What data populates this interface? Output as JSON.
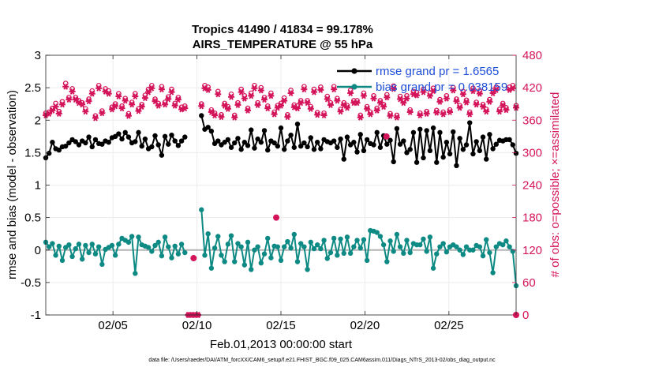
{
  "chart_data": {
    "type": "line",
    "title": "Tropics 41490 / 41834 = 99.178%",
    "subtitle": "AIRS_TEMPERATURE @ 55 hPa",
    "xlabel": "Feb.01,2013 00:00:00 start",
    "ylabel_left": "rmse and bias (model - observation)",
    "ylabel_right": "# of obs: o=possible; ×=assimilated",
    "footnote": "data file: /Users/raeder/DAI/ATM_forcXX/CAM6_setup/f.e21.FHIST_BGC.f09_025.CAM6assim.011/Diags_NTrS_2013-02/obs_diag_output.nc",
    "xlim": [
      1.0,
      29.0
    ],
    "ylim_left": [
      -1,
      3
    ],
    "ylim_right": [
      0,
      480
    ],
    "x_ticks": [
      5,
      10,
      15,
      20,
      25
    ],
    "x_tick_labels": [
      "02/05",
      "02/10",
      "02/15",
      "02/20",
      "02/25"
    ],
    "y_left_ticks": [
      -1,
      -0.5,
      0,
      0.5,
      1,
      1.5,
      2,
      2.5,
      3
    ],
    "y_left_tick_labels": [
      "-1",
      "-0.5",
      "0",
      "0.5",
      "1",
      "1.5",
      "2",
      "2.5",
      "3"
    ],
    "y_right_ticks": [
      0,
      60,
      120,
      180,
      240,
      300,
      360,
      420,
      480
    ],
    "y_right_tick_labels": [
      "0",
      "60",
      "120",
      "180",
      "240",
      "300",
      "360",
      "420",
      "480"
    ],
    "colors": {
      "rmse": "#000000",
      "bias": "#0e8a84",
      "obs": "#d4145a",
      "zero": "#b3b3b3",
      "grid": "#ececec"
    },
    "legend": [
      "rmse grand pr = 1.6565",
      "bias grand pr = 0.038159"
    ],
    "legend_position": "top-right",
    "series": [
      {
        "name": "rmse",
        "axis": "left",
        "values": [
          1.42,
          1.49,
          1.66,
          1.56,
          1.54,
          1.59,
          1.6,
          1.65,
          1.7,
          1.67,
          1.62,
          1.68,
          1.65,
          1.74,
          1.59,
          1.7,
          1.64,
          1.63,
          1.68,
          1.66,
          1.73,
          1.75,
          1.79,
          1.71,
          1.81,
          1.74,
          1.65,
          1.67,
          1.81,
          1.6,
          1.71,
          1.56,
          1.59,
          1.76,
          1.62,
          1.46,
          1.75,
          1.63,
          1.77,
          1.68,
          1.61,
          1.68,
          1.74,
          null,
          null,
          null,
          null,
          2.07,
          1.86,
          1.89,
          1.83,
          1.64,
          1.68,
          1.62,
          1.66,
          1.7,
          1.58,
          1.65,
          1.72,
          1.55,
          1.66,
          1.61,
          1.85,
          1.57,
          1.71,
          1.66,
          1.84,
          1.54,
          1.68,
          1.65,
          1.6,
          1.88,
          1.55,
          1.68,
          1.77,
          1.58,
          1.94,
          1.6,
          1.65,
          1.59,
          1.73,
          1.55,
          1.66,
          1.56,
          1.7,
          1.67,
          1.65,
          1.68,
          1.58,
          1.71,
          1.4,
          1.74,
          1.62,
          1.66,
          1.51,
          1.78,
          1.53,
          1.7,
          1.64,
          1.62,
          1.81,
          1.58,
          1.76,
          1.63,
          1.69,
          1.36,
          1.87,
          1.63,
          1.68,
          1.5,
          1.55,
          1.81,
          1.35,
          1.86,
          1.42,
          1.84,
          1.53,
          1.88,
          1.35,
          1.81,
          1.43,
          1.66,
          1.48,
          1.82,
          1.3,
          1.72,
          1.55,
          1.62,
          1.96,
          1.48,
          1.67,
          1.53,
          1.74,
          1.4,
          1.78,
          1.56,
          1.63,
          1.69,
          1.68,
          1.7,
          1.7,
          1.62,
          1.49
        ]
      },
      {
        "name": "bias",
        "axis": "left",
        "values": [
          0.12,
          0.05,
          0.1,
          -0.08,
          0.06,
          -0.16,
          0.04,
          0.08,
          -0.1,
          0.02,
          0.09,
          -0.14,
          0.07,
          -0.04,
          0.09,
          -0.06,
          0.05,
          -0.22,
          0.01,
          0.04,
          0.07,
          -0.08,
          0.09,
          0.18,
          0.15,
          0.12,
          0.21,
          -0.36,
          0.2,
          0.08,
          0.06,
          0.04,
          -0.02,
          0.07,
          0.12,
          -0.09,
          0.2,
          0.05,
          -0.12,
          0.06,
          -0.06,
          0.09,
          -0.04,
          null,
          null,
          null,
          null,
          0.62,
          -0.08,
          0.25,
          -0.28,
          0.03,
          0.21,
          -0.08,
          -0.18,
          0.09,
          0.22,
          -0.18,
          0.1,
          0.05,
          -0.23,
          0.12,
          -0.3,
          0.0,
          0.05,
          -0.2,
          -0.06,
          0.18,
          -0.12,
          0.06,
          0.05,
          -0.16,
          0.05,
          0.13,
          0.03,
          0.24,
          -0.18,
          0.1,
          0.05,
          -0.3,
          0.12,
          0.02,
          0.08,
          0.02,
          0.15,
          -0.13,
          -0.04,
          0.18,
          -0.08,
          0.17,
          -0.05,
          0.2,
          -0.05,
          0.05,
          0.15,
          0.03,
          0.16,
          -0.16,
          0.3,
          0.29,
          0.27,
          0.21,
          0.08,
          -0.18,
          0.14,
          -0.02,
          0.24,
          0.05,
          -0.05,
          0.15,
          -0.04,
          0.1,
          0.08,
          0.08,
          0.17,
          -0.02,
          0.2,
          -0.28,
          -0.06,
          0.05,
          0.1,
          -0.03,
          0.05,
          0.08,
          0.05,
          0.0,
          -0.07,
          0.05,
          0.0,
          0.0,
          0.07,
          0.05,
          -0.09,
          0.16,
          -0.04,
          -0.35,
          0.05,
          0.1,
          0.08,
          0.14,
          0.05,
          -0.02,
          -0.55
        ]
      },
      {
        "name": "obs possible",
        "axis": "right",
        "marker": "circle",
        "values": [
          373,
          375,
          382,
          391,
          376,
          394,
          428,
          402,
          418,
          402,
          396,
          392,
          381,
          399,
          414,
          368,
          424,
          377,
          418,
          414,
          384,
          390,
          409,
          386,
          400,
          372,
          393,
          409,
          381,
          389,
          406,
          417,
          424,
          399,
          391,
          422,
          393,
          403,
          417,
          391,
          402,
          384,
          386,
          0,
          0,
          0,
          0,
          390,
          424,
          421,
          379,
          373,
          413,
          370,
          391,
          385,
          408,
          369,
          392,
          417,
          405,
          382,
          410,
          424,
          392,
          420,
          402,
          386,
          410,
          375,
          387,
          391,
          401,
          370,
          415,
          388,
          386,
          396,
          422,
          396,
          385,
          417,
          374,
          421,
          373,
          404,
          392,
          422,
          400,
          380,
          392,
          387,
          415,
          396,
          396,
          369,
          410,
          385,
          375,
          405,
          382,
          396,
          389,
          407,
          372,
          423,
          369,
          404,
          396,
          405,
          379,
          413,
          411,
          373,
          417,
          376,
          410,
          419,
          378,
          398,
          375,
          405,
          379,
          420,
          399,
          387,
          413,
          397,
          375,
          419,
          393,
          414,
          389,
          380,
          398,
          415,
          421,
          380,
          391,
          383,
          421,
          424,
          387
        ]
      },
      {
        "name": "obs assimilated",
        "axis": "right",
        "marker": "star",
        "values": [
          369,
          372,
          378,
          385,
          372,
          389,
          422,
          398,
          413,
          398,
          392,
          389,
          376,
          395,
          409,
          364,
          419,
          373,
          413,
          409,
          380,
          386,
          404,
          382,
          396,
          368,
          389,
          404,
          377,
          385,
          401,
          412,
          419,
          395,
          387,
          417,
          389,
          399,
          412,
          387,
          398,
          380,
          382,
          0,
          0,
          0,
          0,
          386,
          419,
          416,
          375,
          369,
          408,
          366,
          387,
          381,
          403,
          365,
          388,
          412,
          400,
          378,
          405,
          419,
          388,
          415,
          398,
          382,
          405,
          371,
          383,
          387,
          396,
          366,
          410,
          384,
          382,
          392,
          417,
          392,
          381,
          412,
          370,
          416,
          369,
          399,
          388,
          417,
          396,
          376,
          388,
          383,
          410,
          392,
          392,
          365,
          405,
          381,
          371,
          400,
          378,
          392,
          385,
          402,
          368,
          418,
          365,
          399,
          392,
          400,
          375,
          408,
          406,
          369,
          412,
          372,
          405,
          414,
          374,
          394,
          371,
          400,
          375,
          415,
          395,
          383,
          408,
          393,
          371,
          414,
          389,
          409,
          385,
          376,
          394,
          410,
          416,
          376,
          387,
          379,
          416,
          419,
          383
        ]
      }
    ],
    "outlier_points": [
      {
        "axis": "right",
        "x": 14.72,
        "y": 180
      },
      {
        "axis": "right",
        "x": 21.28,
        "y": 330
      },
      {
        "axis": "right",
        "x": 9.8,
        "y": 105
      },
      {
        "axis": "right",
        "x": 29.0,
        "y": 0
      }
    ]
  }
}
